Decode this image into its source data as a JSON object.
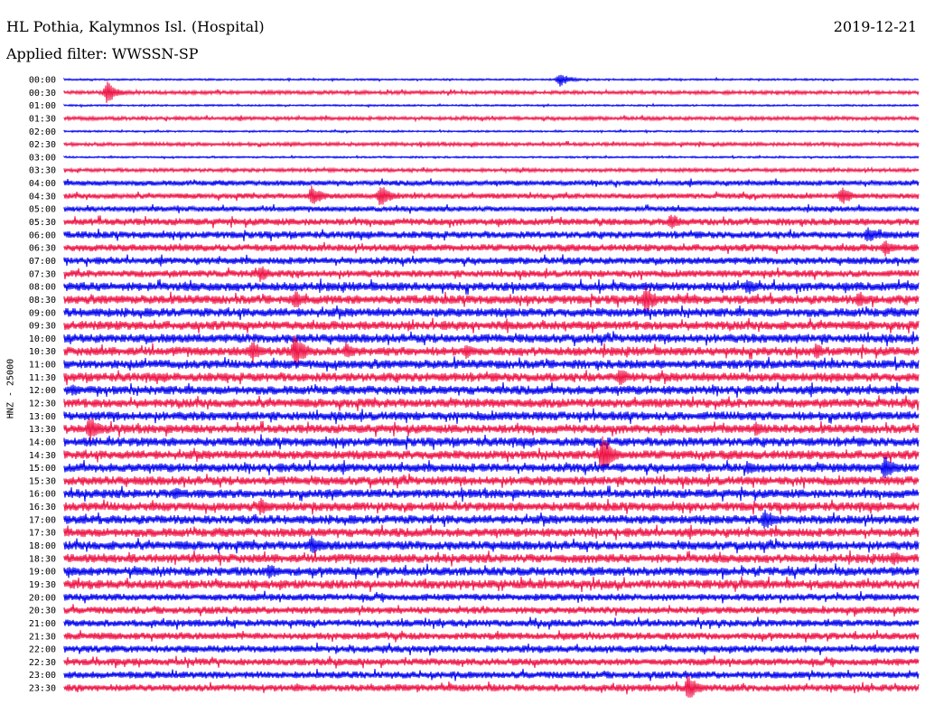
{
  "header": {
    "station": "HL Pothia, Kalymnos Isl. (Hospital)",
    "date": "2019-12-21",
    "filter": "Applied filter: WWSSN-SP"
  },
  "chart_data": {
    "type": "line",
    "title": "HL Pothia, Kalymnos Isl. (Hospital)",
    "ylabel": "HNZ - 25000",
    "row_labels": [
      "00:00",
      "00:30",
      "01:00",
      "01:30",
      "02:00",
      "02:30",
      "03:00",
      "03:30",
      "04:00",
      "04:30",
      "05:00",
      "05:30",
      "06:00",
      "06:30",
      "07:00",
      "07:30",
      "08:00",
      "08:30",
      "09:00",
      "09:30",
      "10:00",
      "10:30",
      "11:00",
      "11:30",
      "12:00",
      "12:30",
      "13:00",
      "13:30",
      "14:00",
      "14:30",
      "15:00",
      "15:30",
      "16:00",
      "16:30",
      "17:00",
      "17:30",
      "18:00",
      "18:30",
      "19:00",
      "19:30",
      "20:00",
      "20:30",
      "21:00",
      "21:30",
      "22:00",
      "22:30",
      "23:00",
      "23:30"
    ],
    "colors": [
      "#0000ee",
      "#ee1144"
    ],
    "row_noise": [
      1,
      2,
      1,
      2,
      1,
      2,
      1,
      2,
      3,
      3,
      3,
      4,
      4,
      4,
      4,
      4,
      5,
      5,
      5,
      5,
      5,
      5,
      5,
      5,
      5,
      5,
      5,
      5,
      5,
      5,
      5,
      5,
      5,
      5,
      5,
      5,
      5,
      5,
      5,
      5,
      4,
      4,
      4,
      4,
      4,
      4,
      4,
      4
    ],
    "events": [
      {
        "row": 0,
        "t": 0.58,
        "amp": 1.0
      },
      {
        "row": 1,
        "t": 0.05,
        "amp": 1.6
      },
      {
        "row": 9,
        "t": 0.29,
        "amp": 1.6
      },
      {
        "row": 9,
        "t": 0.37,
        "amp": 1.7
      },
      {
        "row": 9,
        "t": 0.91,
        "amp": 1.4
      },
      {
        "row": 11,
        "t": 0.71,
        "amp": 1.3
      },
      {
        "row": 12,
        "t": 0.94,
        "amp": 1.4
      },
      {
        "row": 13,
        "t": 0.96,
        "amp": 1.3
      },
      {
        "row": 15,
        "t": 0.23,
        "amp": 1.3
      },
      {
        "row": 16,
        "t": 0.8,
        "amp": 1.3
      },
      {
        "row": 17,
        "t": 0.27,
        "amp": 1.4
      },
      {
        "row": 17,
        "t": 0.68,
        "amp": 2.2
      },
      {
        "row": 17,
        "t": 0.93,
        "amp": 1.3
      },
      {
        "row": 21,
        "t": 0.22,
        "amp": 1.7
      },
      {
        "row": 21,
        "t": 0.27,
        "amp": 2.6
      },
      {
        "row": 21,
        "t": 0.33,
        "amp": 1.3
      },
      {
        "row": 21,
        "t": 0.47,
        "amp": 1.2
      },
      {
        "row": 21,
        "t": 0.88,
        "amp": 1.2
      },
      {
        "row": 23,
        "t": 0.65,
        "amp": 1.5
      },
      {
        "row": 24,
        "t": 0.01,
        "amp": 1.0
      },
      {
        "row": 27,
        "t": 0.03,
        "amp": 2.0
      },
      {
        "row": 27,
        "t": 0.81,
        "amp": 1.2
      },
      {
        "row": 29,
        "t": 0.63,
        "amp": 3.0
      },
      {
        "row": 30,
        "t": 0.96,
        "amp": 1.8
      },
      {
        "row": 30,
        "t": 0.8,
        "amp": 1.1
      },
      {
        "row": 32,
        "t": 0.13,
        "amp": 1.1
      },
      {
        "row": 33,
        "t": 0.23,
        "amp": 1.3
      },
      {
        "row": 34,
        "t": 0.82,
        "amp": 1.8
      },
      {
        "row": 36,
        "t": 0.29,
        "amp": 1.6
      },
      {
        "row": 37,
        "t": 0.97,
        "amp": 1.2
      },
      {
        "row": 38,
        "t": 0.24,
        "amp": 1.2
      },
      {
        "row": 47,
        "t": 0.73,
        "amp": 2.0
      }
    ]
  }
}
